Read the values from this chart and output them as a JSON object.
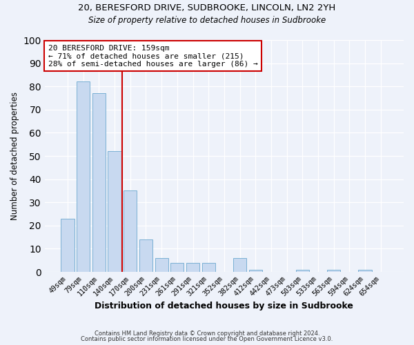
{
  "title1": "20, BERESFORD DRIVE, SUDBROOKE, LINCOLN, LN2 2YH",
  "title2": "Size of property relative to detached houses in Sudbrooke",
  "xlabel": "Distribution of detached houses by size in Sudbrooke",
  "ylabel": "Number of detached properties",
  "categories": [
    "49sqm",
    "79sqm",
    "110sqm",
    "140sqm",
    "170sqm",
    "200sqm",
    "231sqm",
    "261sqm",
    "291sqm",
    "321sqm",
    "352sqm",
    "382sqm",
    "412sqm",
    "442sqm",
    "473sqm",
    "503sqm",
    "533sqm",
    "563sqm",
    "594sqm",
    "624sqm",
    "654sqm"
  ],
  "values": [
    23,
    82,
    77,
    52,
    35,
    14,
    6,
    4,
    4,
    4,
    0,
    6,
    1,
    0,
    0,
    1,
    0,
    1,
    0,
    1,
    0
  ],
  "bar_color": "#c8d9f0",
  "bar_edge_color": "#7ab0d4",
  "vline_x": 3.5,
  "vline_color": "#cc0000",
  "annotation_text": "20 BERESFORD DRIVE: 159sqm\n← 71% of detached houses are smaller (215)\n28% of semi-detached houses are larger (86) →",
  "annotation_box_color": "#ffffff",
  "annotation_box_edge_color": "#cc0000",
  "ylim": [
    0,
    100
  ],
  "yticks": [
    0,
    10,
    20,
    30,
    40,
    50,
    60,
    70,
    80,
    90,
    100
  ],
  "footer1": "Contains HM Land Registry data © Crown copyright and database right 2024.",
  "footer2": "Contains public sector information licensed under the Open Government Licence v3.0.",
  "bg_color": "#eef2fa",
  "plot_bg_color": "#eef2fa",
  "grid_color": "#ffffff",
  "figsize": [
    6.0,
    5.0
  ],
  "dpi": 100
}
